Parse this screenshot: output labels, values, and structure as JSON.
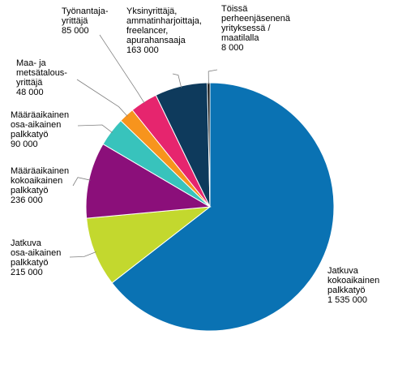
{
  "chart_data": {
    "type": "pie",
    "slices": [
      {
        "name": "Jatkuva kokoaikainen palkkatyö",
        "lines": [
          "Jatkuva",
          "kokoaikainen",
          "palkkatyö",
          "1 535 000"
        ],
        "value": 1535000,
        "color": "#0a72b3"
      },
      {
        "name": "Jatkuva osa-aikainen palkkatyö",
        "lines": [
          "Jatkuva",
          "osa-aikainen",
          "palkkatyö",
          "215 000"
        ],
        "value": 215000,
        "color": "#c3d82e"
      },
      {
        "name": "Määräaikainen kokoaikainen palkkatyö",
        "lines": [
          "Määräaikainen",
          "kokoaikainen",
          "palkkatyö",
          "236 000"
        ],
        "value": 236000,
        "color": "#8b0f7a"
      },
      {
        "name": "Määräaikainen osa-aikainen palkkatyö",
        "lines": [
          "Määräaikainen",
          "osa-aikainen",
          "palkkatyö",
          "90 000"
        ],
        "value": 90000,
        "color": "#38c3bc"
      },
      {
        "name": "Maa- ja metsätalousyrittäjä",
        "lines": [
          "Maa- ja",
          "metsätalous-",
          "yrittäjä",
          "48 000"
        ],
        "value": 48000,
        "color": "#f7941d"
      },
      {
        "name": "Työnantajayrittäjä",
        "lines": [
          "Työnantaja-",
          "yrittäjä",
          "85 000"
        ],
        "value": 85000,
        "color": "#e6256e"
      },
      {
        "name": "Yksinyrittäjä, ammatinharjoittaja, freelancer, apurahansaaja",
        "lines": [
          "Yksinyrittäjä,",
          "ammatinharjoittaja,",
          "freelancer,",
          "apurahansaaja",
          "163 000"
        ],
        "value": 163000,
        "color": "#0e3a5c"
      },
      {
        "name": "Töissä perheenjäsenenä yrityksessä / maatilalla",
        "lines": [
          "Töissä",
          "perheenjäsenenä",
          "yrityksessä /",
          "maatilalla",
          "8 000"
        ],
        "value": 8000,
        "color": "#000000"
      }
    ]
  }
}
